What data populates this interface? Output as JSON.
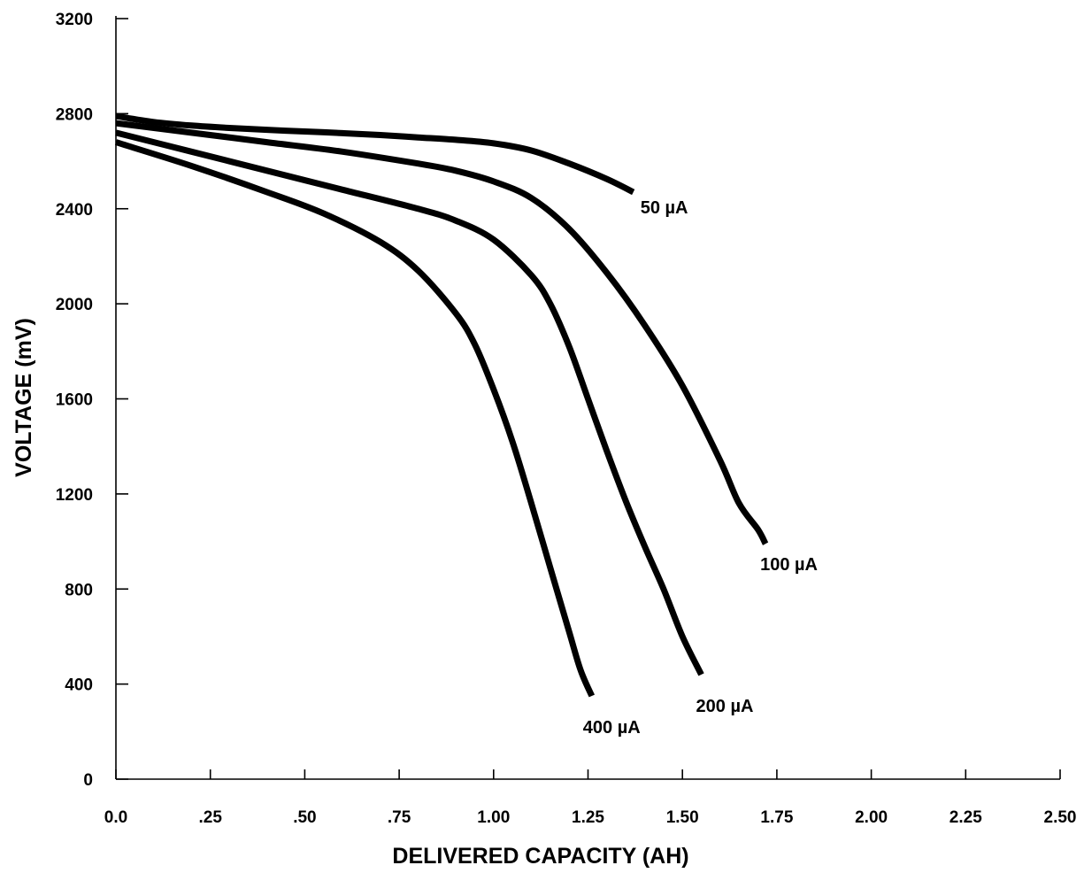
{
  "chart_data": {
    "type": "line",
    "xlabel": "DELIVERED CAPACITY (AH)",
    "ylabel": "VOLTAGE (mV)",
    "xlim": [
      0,
      2.5
    ],
    "ylim": [
      0,
      3200
    ],
    "grid": false,
    "x_ticks": [
      {
        "value": 0,
        "label": "0.0"
      },
      {
        "value": 0.25,
        "label": ".25"
      },
      {
        "value": 0.5,
        "label": ".50"
      },
      {
        "value": 0.75,
        "label": ".75"
      },
      {
        "value": 1.0,
        "label": "1.00"
      },
      {
        "value": 1.25,
        "label": "1.25"
      },
      {
        "value": 1.5,
        "label": "1.50"
      },
      {
        "value": 1.75,
        "label": "1.75"
      },
      {
        "value": 2.0,
        "label": "2.00"
      },
      {
        "value": 2.25,
        "label": "2.25"
      },
      {
        "value": 2.5,
        "label": "2.50"
      }
    ],
    "y_ticks": [
      {
        "value": 0,
        "label": "0"
      },
      {
        "value": 400,
        "label": "400"
      },
      {
        "value": 800,
        "label": "800"
      },
      {
        "value": 1200,
        "label": "1200"
      },
      {
        "value": 1600,
        "label": "1600"
      },
      {
        "value": 2000,
        "label": "2000"
      },
      {
        "value": 2400,
        "label": "2400"
      },
      {
        "value": 2800,
        "label": "2800"
      },
      {
        "value": 3200,
        "label": "3200"
      }
    ],
    "series": [
      {
        "name": "50 µA",
        "x": [
          0,
          0.1,
          0.2,
          0.3,
          0.4,
          0.5,
          0.6,
          0.7,
          0.8,
          0.9,
          1.0,
          1.1,
          1.2,
          1.3,
          1.37
        ],
        "y": [
          2790,
          2765,
          2750,
          2740,
          2732,
          2725,
          2718,
          2710,
          2700,
          2690,
          2675,
          2645,
          2590,
          2525,
          2470
        ]
      },
      {
        "name": "100 µA",
        "x": [
          0,
          0.2,
          0.4,
          0.6,
          0.8,
          0.9,
          1.0,
          1.1,
          1.2,
          1.3,
          1.4,
          1.5,
          1.6,
          1.65,
          1.7,
          1.72
        ],
        "y": [
          2760,
          2720,
          2680,
          2640,
          2590,
          2560,
          2515,
          2445,
          2315,
          2130,
          1910,
          1655,
          1340,
          1160,
          1050,
          990
        ]
      },
      {
        "name": "200 µA",
        "x": [
          0,
          0.2,
          0.4,
          0.6,
          0.8,
          0.9,
          1.0,
          1.1,
          1.15,
          1.2,
          1.25,
          1.3,
          1.35,
          1.4,
          1.45,
          1.5,
          1.55
        ],
        "y": [
          2720,
          2640,
          2560,
          2480,
          2400,
          2350,
          2270,
          2120,
          2000,
          1820,
          1600,
          1380,
          1170,
          980,
          800,
          600,
          440
        ]
      },
      {
        "name": "400 µA",
        "x": [
          0,
          0.2,
          0.4,
          0.55,
          0.7,
          0.8,
          0.9,
          0.95,
          1.0,
          1.05,
          1.1,
          1.15,
          1.2,
          1.23,
          1.26
        ],
        "y": [
          2680,
          2580,
          2470,
          2380,
          2260,
          2140,
          1960,
          1830,
          1640,
          1420,
          1160,
          890,
          620,
          460,
          350
        ]
      }
    ]
  }
}
